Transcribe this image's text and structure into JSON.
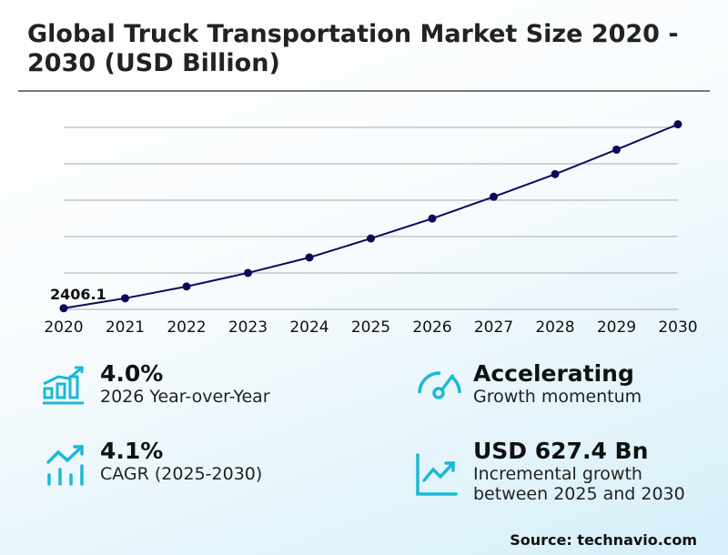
{
  "title": "Global Truck Transportation Market Size 2020 - 2030 (USD Billion)",
  "accent_color": "#1bb8d8",
  "line_color": "#0a0a5c",
  "chart_data": {
    "type": "line",
    "title": "Global Truck Transportation Market Size 2020 - 2030 (USD Billion)",
    "x": [
      "2020",
      "2021",
      "2022",
      "2023",
      "2024",
      "2025",
      "2026",
      "2027",
      "2028",
      "2029",
      "2030"
    ],
    "values": [
      2406.1,
      2460.9,
      2525.6,
      2600.3,
      2685.0,
      2789.5,
      2899.1,
      3018.6,
      3143.1,
      3277.6,
      3416.9
    ],
    "data_labels": [
      {
        "x": "2020",
        "text": "2406.1"
      }
    ],
    "ylim": [
      2400,
      3400
    ],
    "grid": "horizontal",
    "ylabel": "",
    "xlabel": ""
  },
  "stats": [
    {
      "value": "4.0%",
      "label": "2026 Year-over-Year",
      "icon": "bar-chart-growth-icon"
    },
    {
      "value": "Accelerating",
      "label": "Growth momentum",
      "icon": "speedometer-icon"
    },
    {
      "value": "4.1%",
      "label": "CAGR (2025-2030)",
      "icon": "trend-up-bars-icon"
    },
    {
      "value": "USD 627.4 Bn",
      "label": "Incremental growth between 2025 and 2030",
      "icon": "line-chart-up-icon"
    }
  ],
  "source": "Source: technavio.com"
}
